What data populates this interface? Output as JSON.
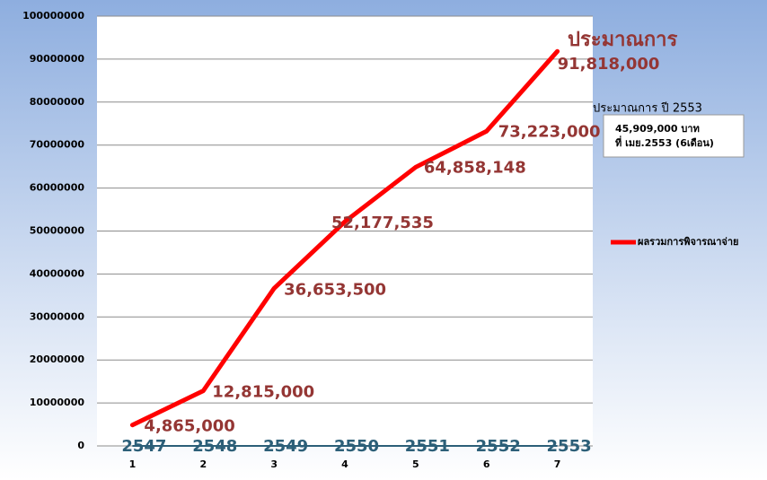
{
  "chart_data": {
    "type": "line",
    "x": [
      1,
      2,
      3,
      4,
      5,
      6,
      7
    ],
    "series": [
      {
        "name": "ผลรวมการพิจารณาจ่าย",
        "color": "#ff0000",
        "values": [
          4865000,
          12815000,
          36653500,
          52177535,
          64858148,
          73223000,
          91818000
        ],
        "value_labels": [
          "4,865,000",
          "12,815,000",
          "36,653,500",
          "52,177,535",
          "64,858,148",
          "73,223,000",
          "91,818,000"
        ]
      }
    ],
    "category_labels": [
      "2547",
      "2548",
      "2549",
      "2550",
      "2551",
      "2552",
      "2553"
    ],
    "xlim": [
      0.5,
      7.5
    ],
    "xticks": [
      1,
      2,
      3,
      4,
      5,
      6,
      7
    ],
    "ylim": [
      0,
      100000000
    ],
    "yticks": [
      0,
      10000000,
      20000000,
      30000000,
      40000000,
      50000000,
      60000000,
      70000000,
      80000000,
      90000000,
      100000000
    ],
    "grid": true,
    "legend": "right",
    "annotations": {
      "forecast_title": "ประมาณการ",
      "forecast_year": "ประมาณการ ปี 2553",
      "note": [
        "45,909,000 บาท",
        "ที่ เมย.2553 (6เดือน)"
      ]
    }
  }
}
